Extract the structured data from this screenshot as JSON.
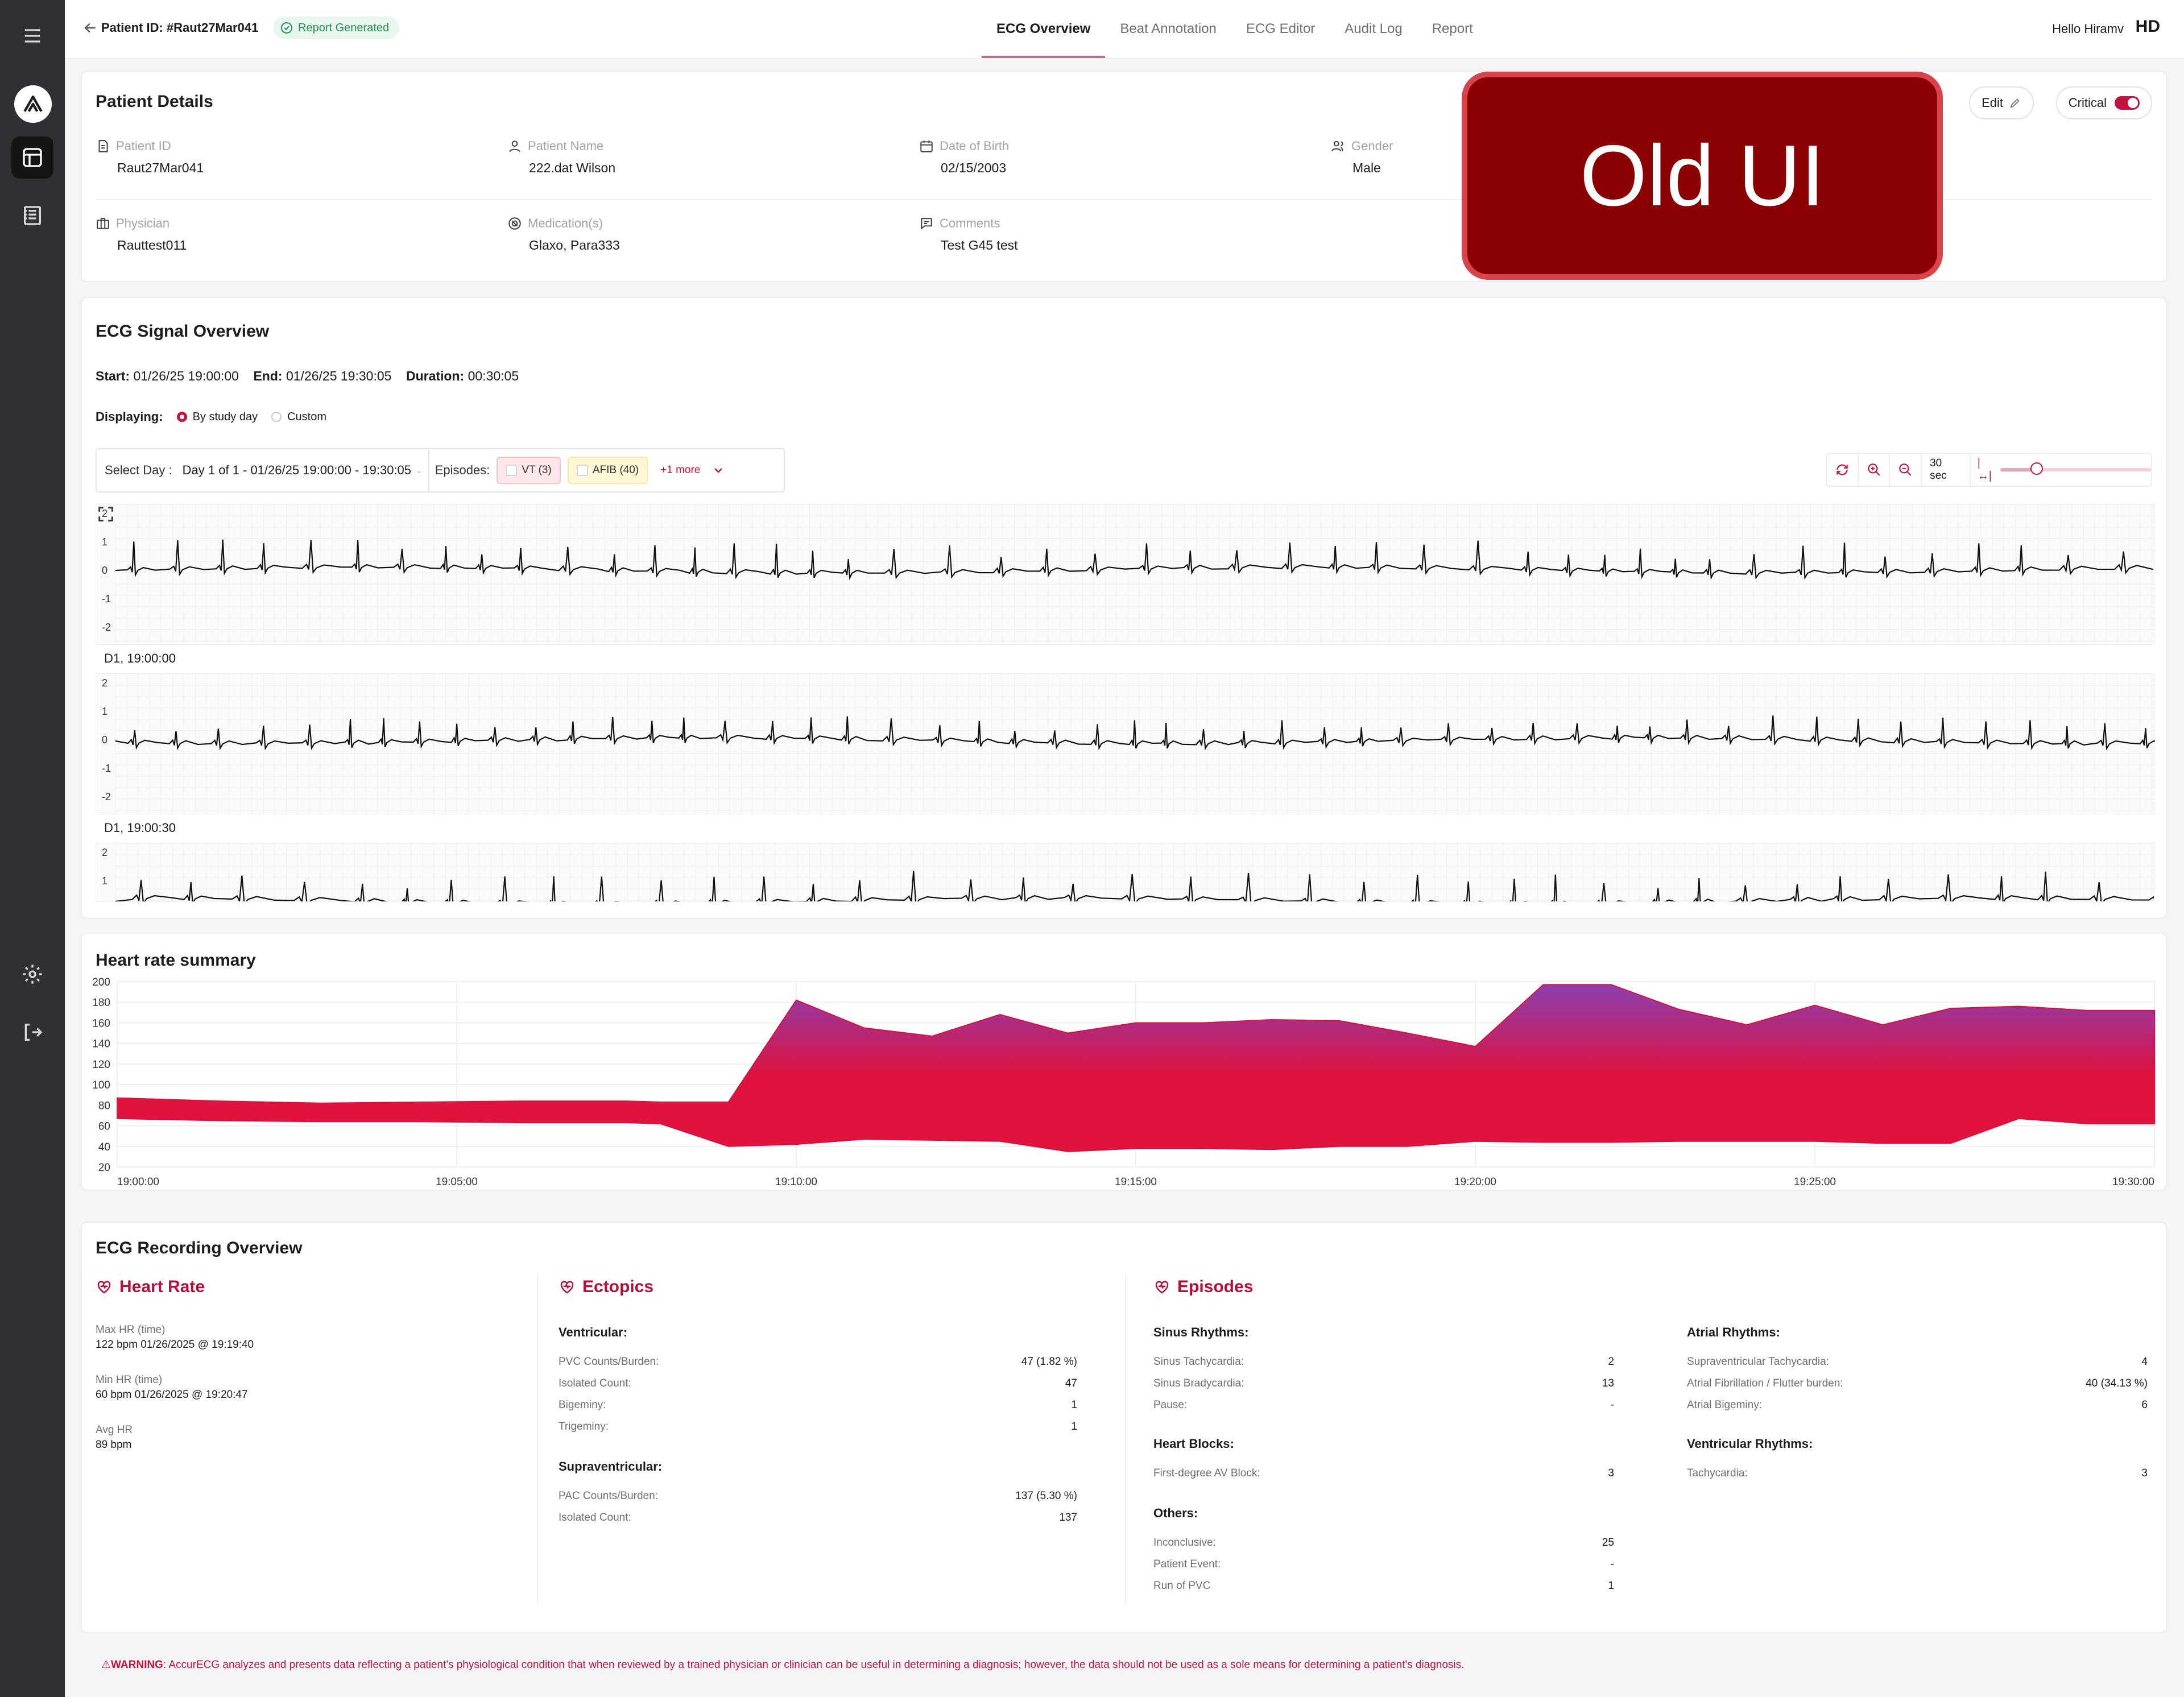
{
  "topbar": {
    "patient_id_label": "Patient ID: #Raut27Mar041",
    "report_badge": "Report Generated",
    "tabs": [
      "ECG Overview",
      "Beat Annotation",
      "ECG Editor",
      "Audit Log",
      "Report"
    ],
    "active_tab": "ECG Overview",
    "greeting": "Hello Hiramv",
    "user_initials": "HD"
  },
  "overlay": {
    "text": "Old UI"
  },
  "patient_details": {
    "title": "Patient Details",
    "edit_label": "Edit",
    "critical_label": "Critical",
    "critical_on": true,
    "fields": {
      "patient_id": {
        "label": "Patient ID",
        "value": "Raut27Mar041"
      },
      "patient_name": {
        "label": "Patient Name",
        "value": "222.dat Wilson"
      },
      "dob": {
        "label": "Date of Birth",
        "value": "02/15/2003"
      },
      "gender": {
        "label": "Gender",
        "value": "Male"
      },
      "physician": {
        "label": "Physician",
        "value": "Rauttest011"
      },
      "medications": {
        "label": "Medication(s)",
        "value": "Glaxo, Para333"
      },
      "comments": {
        "label": "Comments",
        "value": "Test G45 test"
      }
    }
  },
  "ecg_overview": {
    "title": "ECG Signal Overview",
    "start_label": "Start:",
    "start_value": "01/26/25 19:00:00",
    "end_label": "End:",
    "end_value": "01/26/25 19:30:05",
    "duration_label": "Duration:",
    "duration_value": "00:30:05",
    "displaying_label": "Displaying:",
    "option_by_day": "By study day",
    "option_custom": "Custom",
    "select_day_label": "Select Day :",
    "select_day_value": "Day 1 of 1 - 01/26/25 19:00:00 - 19:30:05",
    "episodes_label": "Episodes:",
    "chip_vt": "VT (3)",
    "chip_afib": "AFIB (40)",
    "more_label": "+1 more",
    "window_label": "30 sec",
    "window_slider_fraction": 0.15,
    "strip_yticks": [
      "2",
      "1",
      "0",
      "-1",
      "-2"
    ],
    "strip1_caption": "D1, 19:00:00",
    "strip2_caption": "D1, 19:00:30",
    "strip3_yticks": [
      "2",
      "1"
    ]
  },
  "hr_summary": {
    "title": "Heart rate summary",
    "colors": {
      "low": "#e0123e",
      "high": "#8b3fb0"
    },
    "chart_data": {
      "type": "area",
      "title": "Heart rate summary",
      "x": [
        "19:00:00",
        "19:01:30",
        "19:03:00",
        "19:04:30",
        "19:06:00",
        "19:07:30",
        "19:08:00",
        "19:09:00",
        "19:10:00",
        "19:11:00",
        "19:12:00",
        "19:13:00",
        "19:14:00",
        "19:15:00",
        "19:16:00",
        "19:17:00",
        "19:18:00",
        "19:19:00",
        "19:20:00",
        "19:21:00",
        "19:22:00",
        "19:23:00",
        "19:24:00",
        "19:25:00",
        "19:26:00",
        "19:27:00",
        "19:28:00",
        "19:29:00",
        "19:30:00"
      ],
      "series": [
        {
          "values_max": [
            87,
            84,
            82,
            83,
            84,
            84,
            83,
            83,
            182,
            155,
            147,
            168,
            150,
            160,
            160,
            163,
            162,
            150,
            137,
            197,
            197,
            173,
            158,
            177,
            158,
            174,
            176,
            172,
            172
          ]
        },
        {
          "values_min": [
            67,
            65,
            64,
            64,
            63,
            63,
            62,
            40,
            42,
            47,
            46,
            45,
            35,
            38,
            38,
            37,
            40,
            40,
            45,
            44,
            44,
            45,
            45,
            45,
            43,
            43,
            67,
            62,
            62
          ]
        }
      ],
      "ylim": [
        20,
        200
      ],
      "yticks": [
        "20",
        "40",
        "60",
        "80",
        "100",
        "120",
        "140",
        "160",
        "180",
        "200"
      ],
      "xticks": [
        "19:00:00",
        "19:05:00",
        "19:10:00",
        "19:15:00",
        "19:20:00",
        "19:25:00",
        "19:30:00"
      ],
      "grid": true
    }
  },
  "recording_overview": {
    "title": "ECG Recording Overview",
    "heart_rate": {
      "title": "Heart Rate",
      "max_label": "Max HR (time)",
      "max_value": "122 bpm 01/26/2025 @ 19:19:40",
      "min_label": "Min HR (time)",
      "min_value": "60 bpm 01/26/2025 @ 19:20:47",
      "avg_label": "Avg HR",
      "avg_value": "89 bpm"
    },
    "ectopics": {
      "title": "Ectopics",
      "ventricular_head": "Ventricular:",
      "ventricular": [
        {
          "k": "PVC Counts/Burden:",
          "v": "47 (1.82 %)"
        },
        {
          "k": "Isolated Count:",
          "v": "47"
        },
        {
          "k": "Bigeminy:",
          "v": "1"
        },
        {
          "k": "Trigeminy:",
          "v": "1"
        }
      ],
      "supra_head": "Supraventricular:",
      "supra": [
        {
          "k": "PAC Counts/Burden:",
          "v": "137 (5.30 %)"
        },
        {
          "k": "Isolated Count:",
          "v": "137"
        }
      ]
    },
    "episodes": {
      "title": "Episodes",
      "sinus_head": "Sinus Rhythms:",
      "sinus": [
        {
          "k": "Sinus Tachycardia:",
          "v": "2"
        },
        {
          "k": "Sinus Bradycardia:",
          "v": "13"
        },
        {
          "k": "Pause:",
          "v": "-"
        }
      ],
      "blocks_head": "Heart Blocks:",
      "blocks": [
        {
          "k": "First-degree AV Block:",
          "v": "3"
        }
      ],
      "others_head": "Others:",
      "others": [
        {
          "k": "Inconclusive:",
          "v": "25"
        },
        {
          "k": "Patient Event:",
          "v": "-"
        },
        {
          "k": "Run of PVC",
          "v": "1"
        }
      ],
      "atrial_head": "Atrial Rhythms:",
      "atrial": [
        {
          "k": "Supraventricular Tachycardia:",
          "v": "4"
        },
        {
          "k": "Atrial Fibrillation / Flutter burden:",
          "v": "40 (34.13 %)"
        },
        {
          "k": "Atrial Bigeminy:",
          "v": "6"
        }
      ],
      "vent_head": "Ventricular Rhythms:",
      "vent": [
        {
          "k": "Tachycardia:",
          "v": "3"
        }
      ]
    }
  },
  "warning": {
    "prefix": "⚠WARNING",
    "text": ": AccurECG analyzes and presents data reflecting a patient's physiological condition that when reviewed by a trained physician or clinician can be useful in determining a diagnosis; however, the data should not be used as a sole means for determining a patient's diagnosis."
  }
}
